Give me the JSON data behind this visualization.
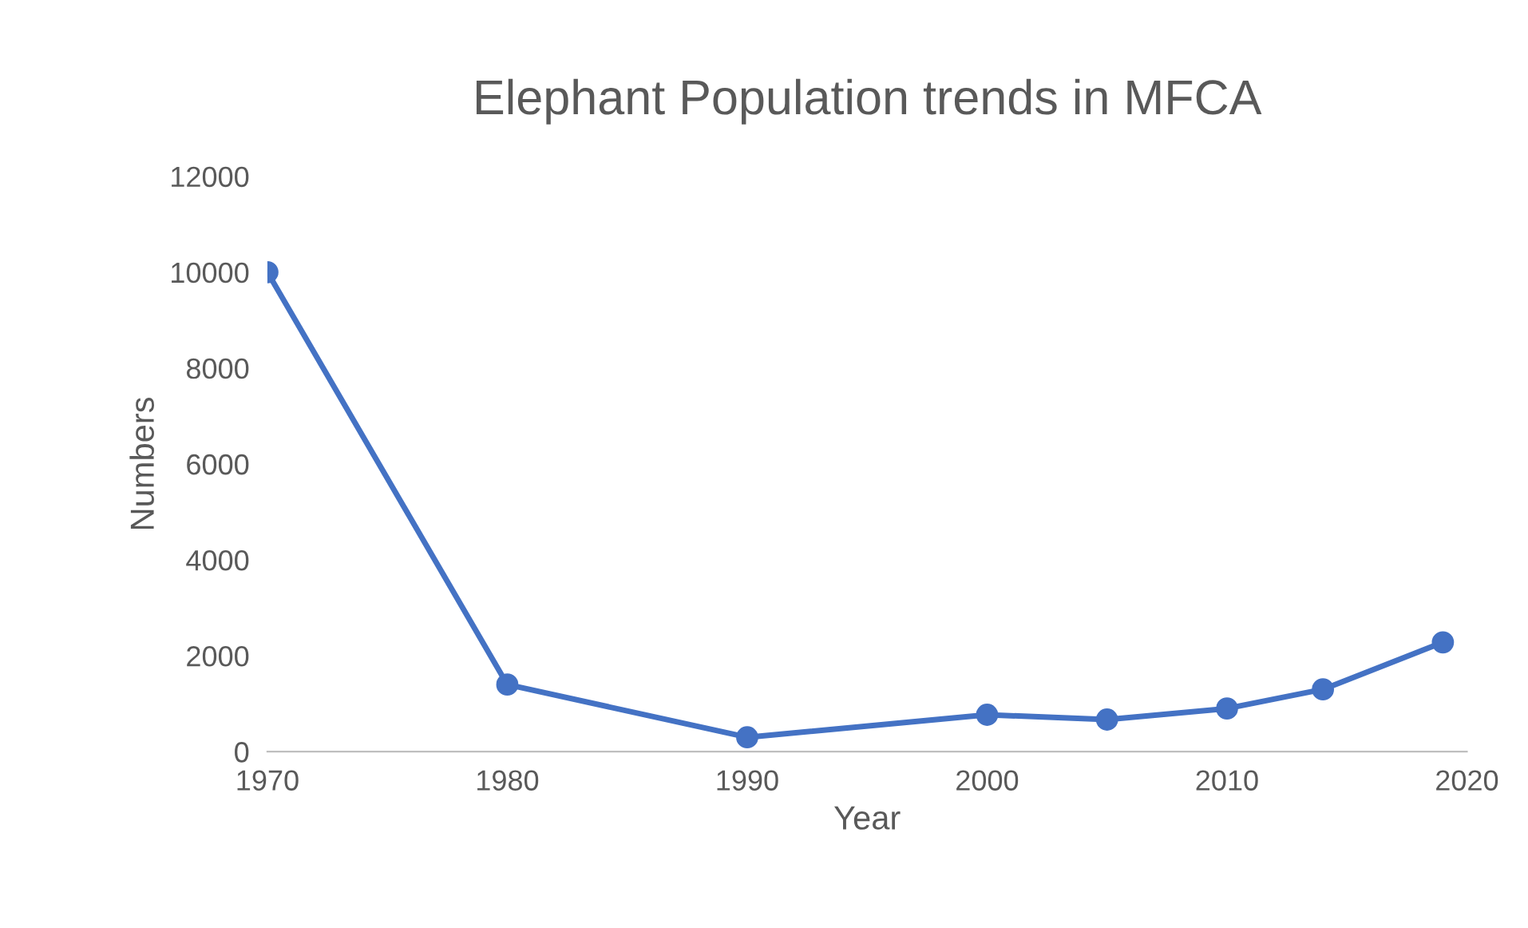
{
  "chart_data": {
    "type": "line",
    "title": "Elephant Population trends in MFCA",
    "xlabel": "Year",
    "ylabel": "Numbers",
    "x": [
      1970,
      1980,
      1990,
      2000,
      2005,
      2010,
      2014,
      2019
    ],
    "series": [
      {
        "color": "#4472c4",
        "values": [
          10000,
          1400,
          300,
          770,
          670,
          900,
          1300,
          2280
        ]
      }
    ],
    "xlim": [
      1970,
      2020
    ],
    "xticks": [
      1970,
      1980,
      1990,
      2000,
      2010,
      2020
    ],
    "ylim": [
      0,
      12000
    ],
    "yticks": [
      0,
      2000,
      4000,
      6000,
      8000,
      10000,
      12000
    ],
    "marker": "circle",
    "line_style": "solid",
    "grid": false,
    "legend": false
  }
}
